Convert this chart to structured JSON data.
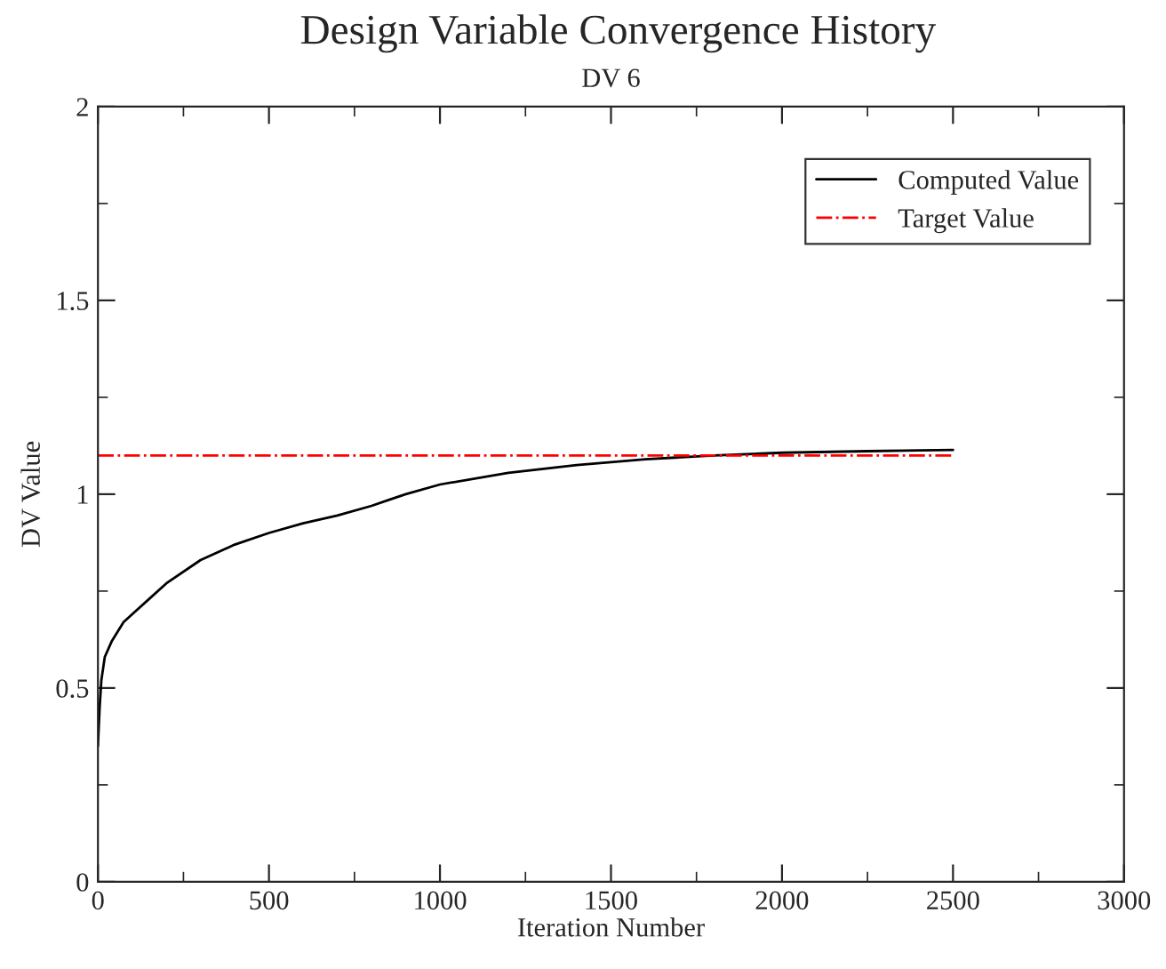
{
  "chart_data": {
    "type": "line",
    "title": "Design Variable Convergence History",
    "subtitle": "DV 6",
    "xlabel": "Iteration Number",
    "ylabel": "DV Value",
    "series": [
      {
        "name": "Computed Value",
        "color": "#000000",
        "line_style": "solid",
        "x": [
          0,
          5,
          10,
          20,
          40,
          75,
          100,
          150,
          200,
          300,
          400,
          500,
          600,
          700,
          800,
          850,
          900,
          1000,
          1200,
          1400,
          1600,
          1800,
          2000,
          2250,
          2500
        ],
        "values": [
          0.35,
          0.45,
          0.52,
          0.58,
          0.62,
          0.67,
          0.69,
          0.73,
          0.77,
          0.83,
          0.87,
          0.9,
          0.925,
          0.945,
          0.97,
          0.985,
          1.0,
          1.025,
          1.055,
          1.075,
          1.09,
          1.1,
          1.107,
          1.111,
          1.114
        ]
      },
      {
        "name": "Target Value",
        "color": "#ff0000",
        "line_style": "dashdot",
        "x": [
          0,
          2500
        ],
        "values": [
          1.1,
          1.1
        ]
      }
    ],
    "xlim": [
      0,
      3000
    ],
    "xticks": [
      0,
      500,
      1000,
      1500,
      2000,
      2500,
      3000
    ],
    "ylim": [
      0,
      2
    ],
    "yticks": [
      0,
      0.5,
      1,
      1.5,
      2
    ],
    "grid": false,
    "legend": "top right"
  }
}
